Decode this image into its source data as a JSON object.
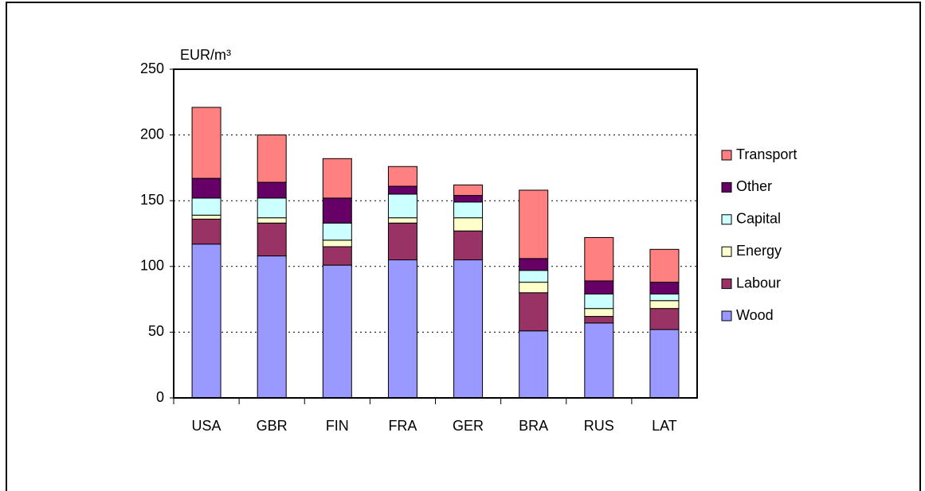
{
  "chart_data": {
    "type": "stacked_bar",
    "y_label": "EUR/m³",
    "categories": [
      "USA",
      "GBR",
      "FIN",
      "FRA",
      "GER",
      "BRA",
      "RUS",
      "LAT"
    ],
    "series": [
      {
        "name": "Wood",
        "color": "#9999ff",
        "values": [
          117,
          108,
          101,
          105,
          105,
          51,
          57,
          52
        ]
      },
      {
        "name": "Labour",
        "color": "#993366",
        "values": [
          19,
          25,
          14,
          28,
          22,
          29,
          5,
          16
        ]
      },
      {
        "name": "Energy",
        "color": "#ffffcc",
        "values": [
          3,
          4,
          5,
          4,
          10,
          8,
          6,
          6
        ]
      },
      {
        "name": "Capital",
        "color": "#ccffff",
        "values": [
          13,
          15,
          13,
          18,
          12,
          9,
          11,
          5
        ]
      },
      {
        "name": "Other",
        "color": "#660066",
        "values": [
          15,
          12,
          19,
          6,
          5,
          9,
          10,
          9
        ]
      },
      {
        "name": "Transport",
        "color": "#ff8080",
        "values": [
          54,
          36,
          30,
          15,
          8,
          52,
          33,
          25
        ]
      }
    ],
    "ylim": [
      0,
      250
    ],
    "yticks": [
      0,
      50,
      100,
      150,
      200,
      250
    ],
    "grid": true,
    "legend": "right"
  }
}
